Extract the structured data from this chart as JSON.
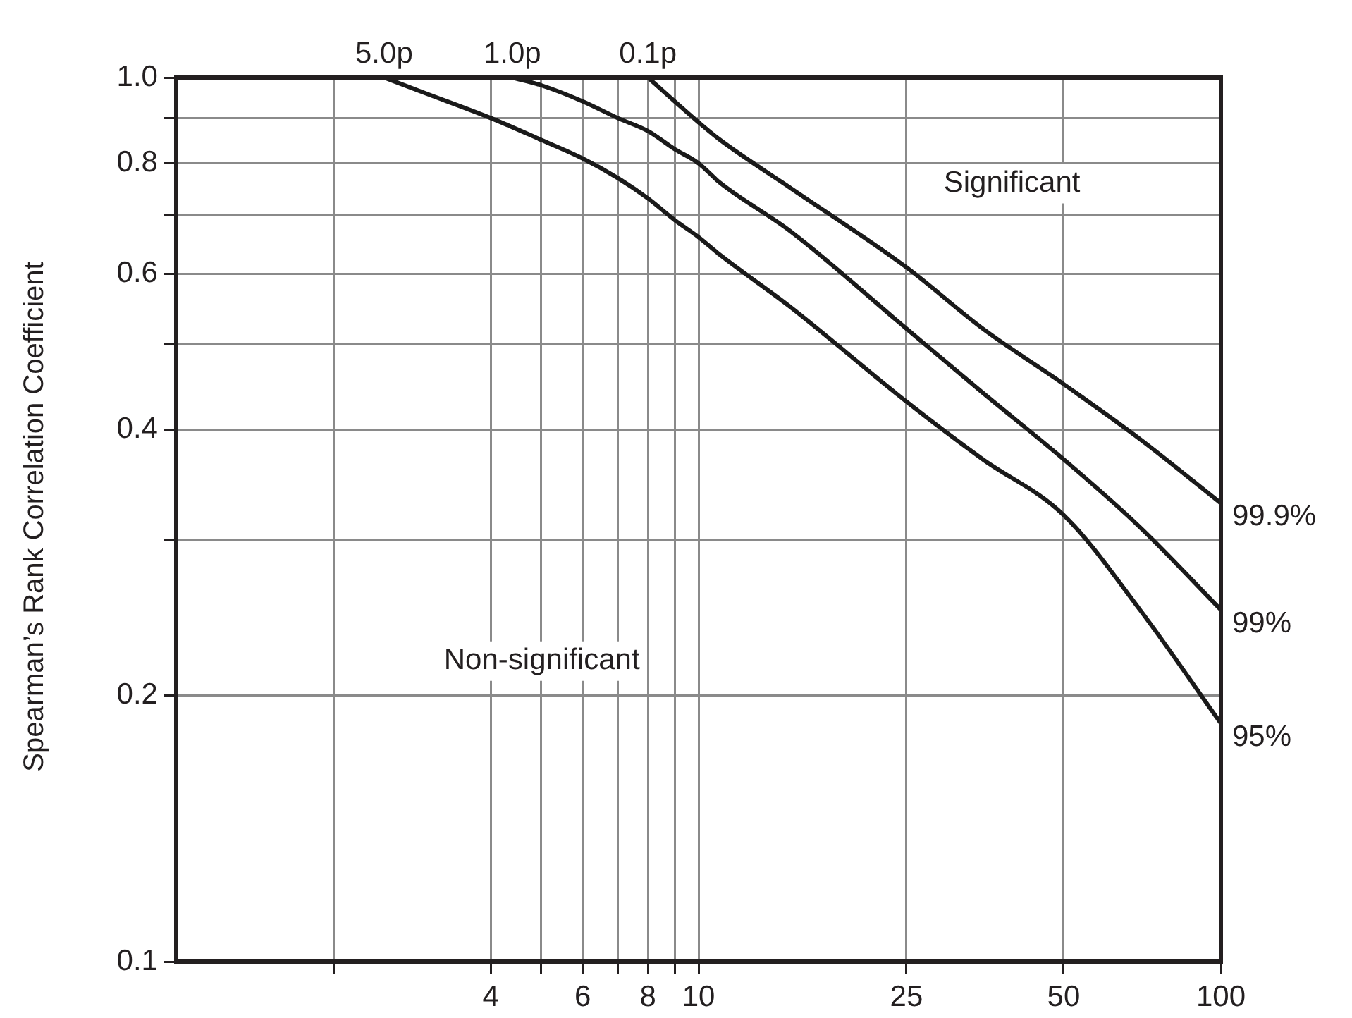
{
  "chart_data": {
    "type": "line",
    "ylabel": "Spearman’s Rank Correlation Coefficient",
    "log": "xy",
    "xlim": [
      1,
      100
    ],
    "ylim": [
      0.1,
      1
    ],
    "xticks": [
      {
        "value": 2,
        "label": null
      },
      4,
      {
        "value": 5,
        "label": null
      },
      6,
      {
        "value": 7,
        "label": null
      },
      8,
      {
        "value": 9,
        "label": null
      },
      10,
      25,
      50,
      100
    ],
    "yticks": [
      0.1,
      0.2,
      {
        "value": 0.3,
        "label": null
      },
      0.4,
      {
        "value": 0.5,
        "label": null
      },
      0.6,
      {
        "value": 0.7,
        "label": null
      },
      0.8,
      {
        "value": 0.9,
        "label": null
      },
      {
        "value": 1,
        "label": "1.0"
      }
    ],
    "grid": true,
    "legend": false,
    "marker": "none",
    "line_style": "solid",
    "series": [
      {
        "name": "99.9%",
        "color": "#1a1a1a",
        "x": [
          8,
          9,
          10,
          11,
          15,
          25,
          35,
          50,
          70,
          100
        ],
        "values": [
          1,
          0.94,
          0.89,
          0.85,
          0.75,
          0.61,
          0.52,
          0.45,
          0.39,
          0.33
        ]
      },
      {
        "name": "99%",
        "color": "#1a1a1a",
        "x": [
          4.4,
          5,
          6,
          7,
          8,
          9,
          10,
          11,
          15,
          25,
          35,
          50,
          70,
          100
        ],
        "values": [
          1,
          0.98,
          0.94,
          0.9,
          0.87,
          0.83,
          0.8,
          0.76,
          0.67,
          0.52,
          0.44,
          0.37,
          0.31,
          0.25
        ]
      },
      {
        "name": "95%",
        "color": "#1a1a1a",
        "x": [
          2.5,
          3,
          4,
          5,
          6,
          7,
          8,
          9,
          10,
          11,
          15,
          25,
          35,
          50,
          70,
          100
        ],
        "values": [
          1,
          0.96,
          0.9,
          0.85,
          0.81,
          0.77,
          0.73,
          0.69,
          0.66,
          0.63,
          0.55,
          0.43,
          0.37,
          0.32,
          0.25,
          0.186
        ]
      }
    ],
    "annotations": [
      {
        "text": "5.0p",
        "x": 2.5,
        "y": 1
      },
      {
        "text": "1.0p",
        "x": 4.4,
        "y": 1
      },
      {
        "text": "0.1p",
        "x": 8,
        "y": 1
      },
      "Significant",
      "Non-significant"
    ]
  }
}
